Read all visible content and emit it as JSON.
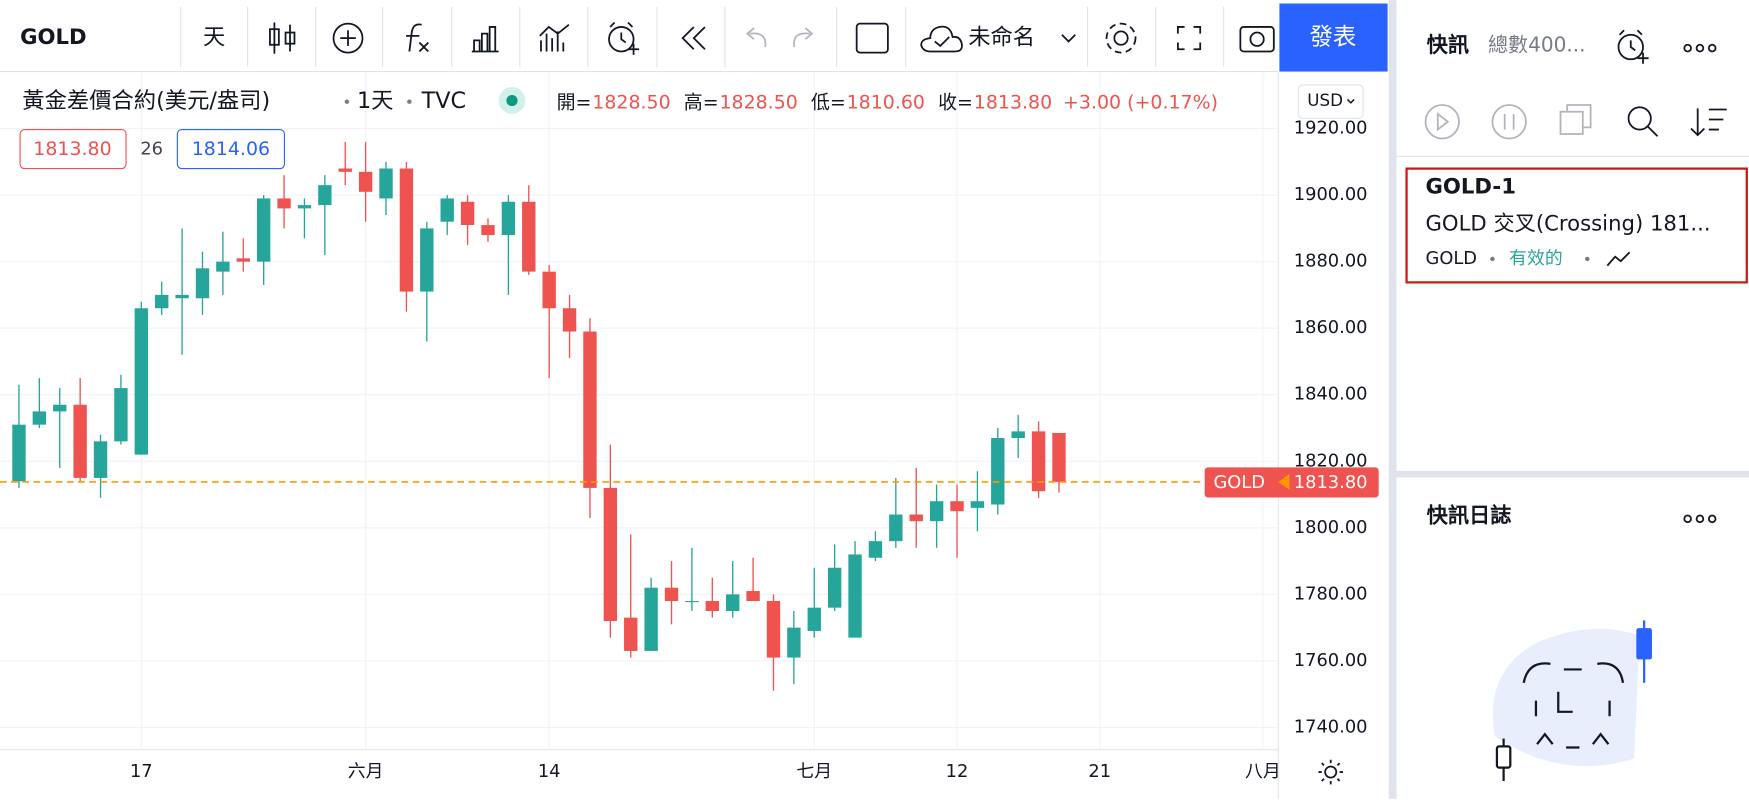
{
  "toolbar": {
    "symbol": "GOLD",
    "interval": "天",
    "layout_name": "未命名",
    "publish": "發表"
  },
  "legend": {
    "name": "黃金差價合約(美元/盎司)",
    "interval": "1天",
    "exchange": "TVC",
    "open_label": "開=",
    "open": "1828.50",
    "high_label": "高=",
    "high": "1828.50",
    "low_label": "低=",
    "low": "1810.60",
    "close_label": "收=",
    "close": "1813.80",
    "change": "+3.00 (+0.17%)",
    "bid": "1813.80",
    "spread": "26",
    "ask": "1814.06"
  },
  "currency": "USD",
  "sidebar": {
    "title": "快訊",
    "count": "總數400...",
    "alert": {
      "name": "GOLD-1",
      "description": "GOLD 交叉(Crossing) 181...",
      "symbol": "GOLD",
      "status": "有效的"
    },
    "log_title": "快訊日誌"
  },
  "chart_data": {
    "type": "candlestick",
    "up_color": "#26a69a",
    "down_color": "#ef5350",
    "open": [
      1814,
      1831,
      1835,
      1837,
      1815,
      1826,
      1822,
      1866,
      1869,
      1869,
      1877,
      1881,
      1880,
      1899,
      1896,
      1897,
      1908,
      1907,
      1899,
      1908,
      1871,
      1892,
      1898,
      1891,
      1888,
      1898,
      1877,
      1866,
      1859,
      1812,
      1773,
      1763,
      1782,
      1778,
      1778,
      1775,
      1781,
      1778,
      1761,
      1769,
      1776,
      1767,
      1791,
      1796,
      1804,
      1802,
      1808,
      1806,
      1807,
      1827,
      1829,
      1828.5
    ],
    "high": [
      1843,
      1845,
      1842,
      1845,
      1828,
      1846,
      1868,
      1874,
      1890,
      1883,
      1889,
      1887,
      1900,
      1906,
      1899,
      1906,
      1916,
      1916,
      1910,
      1910,
      1892,
      1900,
      1900,
      1893,
      1900,
      1903,
      1879,
      1870,
      1863,
      1825,
      1798,
      1785,
      1790,
      1794,
      1785,
      1790,
      1791,
      1780,
      1775,
      1788,
      1795,
      1796,
      1799,
      1815,
      1818,
      1813,
      1813,
      1817,
      1830,
      1834,
      1832,
      1828.5
    ],
    "low": [
      1812,
      1830,
      1818,
      1814,
      1809,
      1825,
      1822,
      1864,
      1852,
      1864,
      1870,
      1877,
      1873,
      1890,
      1887,
      1882,
      1903,
      1892,
      1894,
      1865,
      1856,
      1888,
      1885,
      1886,
      1870,
      1876,
      1845,
      1851,
      1803,
      1767,
      1761,
      1763,
      1771,
      1775,
      1773,
      1773,
      1778,
      1751,
      1753,
      1767,
      1775,
      1767,
      1790,
      1794,
      1794,
      1794,
      1791,
      1799,
      1804,
      1821,
      1809,
      1810.6
    ],
    "close": [
      1831,
      1835,
      1837,
      1815,
      1826,
      1842,
      1866,
      1870,
      1870,
      1878,
      1880,
      1880,
      1899,
      1896,
      1897,
      1903,
      1907,
      1901,
      1908,
      1871,
      1890,
      1899,
      1891,
      1888,
      1898,
      1877,
      1866,
      1859,
      1812,
      1772,
      1763,
      1782,
      1778,
      1778,
      1775,
      1780,
      1778,
      1761,
      1770,
      1776,
      1788,
      1792,
      1796,
      1804,
      1802,
      1808,
      1805,
      1808,
      1827,
      1829,
      1811,
      1813.8
    ],
    "xlim": [
      -0.93,
      61.7
    ],
    "xticks": [
      {
        "value": 6,
        "label": "17"
      },
      {
        "value": 17,
        "label": "六月"
      },
      {
        "value": 26,
        "label": "14"
      },
      {
        "value": 39,
        "label": "七月"
      },
      {
        "value": 46,
        "label": "12"
      },
      {
        "value": 53,
        "label": "21"
      },
      {
        "value": 61,
        "label": "八月"
      }
    ],
    "ylim": [
      1733.3,
      1936.8
    ],
    "yticks": [
      {
        "value": 1740,
        "label": "1740.00"
      },
      {
        "value": 1760,
        "label": "1760.00"
      },
      {
        "value": 1780,
        "label": "1780.00"
      },
      {
        "value": 1800,
        "label": "1800.00"
      },
      {
        "value": 1820,
        "label": "1820.00"
      },
      {
        "value": 1840,
        "label": "1840.00"
      },
      {
        "value": 1860,
        "label": "1860.00"
      },
      {
        "value": 1880,
        "label": "1880.00"
      },
      {
        "value": 1900,
        "label": "1900.00"
      },
      {
        "value": 1920,
        "label": "1920.00"
      }
    ],
    "grid": true,
    "last_price": {
      "name": "GOLD",
      "value": 1813.8,
      "label": "1813.80",
      "color": "#ff9800"
    }
  }
}
